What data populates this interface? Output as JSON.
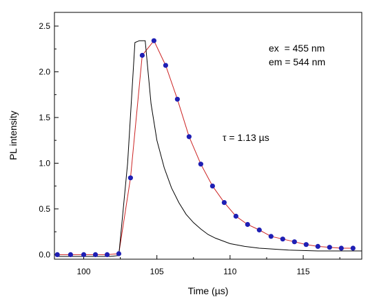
{
  "chart_data": {
    "type": "scatter",
    "title": "",
    "xlabel": "Time (µs)",
    "ylabel": "PL intensity",
    "xlim": [
      98,
      119
    ],
    "ylim": [
      -0.05,
      2.65
    ],
    "xticks": [
      100,
      105,
      110,
      115
    ],
    "xtick_labels": [
      "100",
      "105",
      "110",
      "115"
    ],
    "yticks": [
      0.0,
      0.5,
      1.0,
      1.5,
      2.0,
      2.5
    ],
    "ytick_labels": [
      "0.0",
      "0.5",
      "1.0",
      "1.5",
      "2.0",
      "2.5"
    ],
    "grid": false,
    "legend": "none",
    "annotations": {
      "ex": "ex  = 455 nm",
      "em": "em = 544 nm",
      "tau": "τ = 1.13 µs"
    },
    "series": [
      {
        "style": "points with line",
        "marker_color": "#1f1fb4",
        "line_color": "#cc2222",
        "points": [
          [
            98.2,
            0.0
          ],
          [
            99.1,
            0.0
          ],
          [
            100.0,
            0.0
          ],
          [
            100.8,
            0.0
          ],
          [
            101.6,
            0.0
          ],
          [
            102.4,
            0.01
          ],
          [
            103.2,
            0.84
          ],
          [
            104.0,
            2.18
          ],
          [
            104.8,
            2.34
          ],
          [
            105.6,
            2.07
          ],
          [
            106.4,
            1.7
          ],
          [
            107.2,
            1.29
          ],
          [
            108.0,
            0.99
          ],
          [
            108.8,
            0.75
          ],
          [
            109.6,
            0.57
          ],
          [
            110.4,
            0.42
          ],
          [
            111.2,
            0.33
          ],
          [
            112.0,
            0.27
          ],
          [
            112.8,
            0.2
          ],
          [
            113.6,
            0.17
          ],
          [
            114.4,
            0.14
          ],
          [
            115.2,
            0.11
          ],
          [
            116.0,
            0.09
          ],
          [
            116.8,
            0.08
          ],
          [
            117.6,
            0.07
          ],
          [
            118.4,
            0.07
          ]
        ]
      },
      {
        "style": "line",
        "line_color": "#000000",
        "points": [
          [
            98.2,
            -0.02
          ],
          [
            101.8,
            -0.02
          ],
          [
            102.4,
            -0.01
          ],
          [
            103.0,
            1.0
          ],
          [
            103.5,
            2.32
          ],
          [
            103.8,
            2.34
          ],
          [
            104.2,
            2.34
          ],
          [
            104.6,
            1.65
          ],
          [
            105.0,
            1.25
          ],
          [
            105.5,
            0.95
          ],
          [
            106.0,
            0.73
          ],
          [
            106.5,
            0.57
          ],
          [
            107.0,
            0.44
          ],
          [
            107.5,
            0.35
          ],
          [
            108.0,
            0.28
          ],
          [
            108.5,
            0.22
          ],
          [
            109.0,
            0.18
          ],
          [
            109.5,
            0.15
          ],
          [
            110.0,
            0.12
          ],
          [
            111.0,
            0.09
          ],
          [
            112.0,
            0.07
          ],
          [
            113.0,
            0.06
          ],
          [
            114.0,
            0.05
          ],
          [
            115.0,
            0.045
          ],
          [
            116.0,
            0.04
          ],
          [
            117.0,
            0.04
          ],
          [
            118.0,
            0.04
          ],
          [
            119.0,
            0.04
          ]
        ]
      }
    ]
  }
}
